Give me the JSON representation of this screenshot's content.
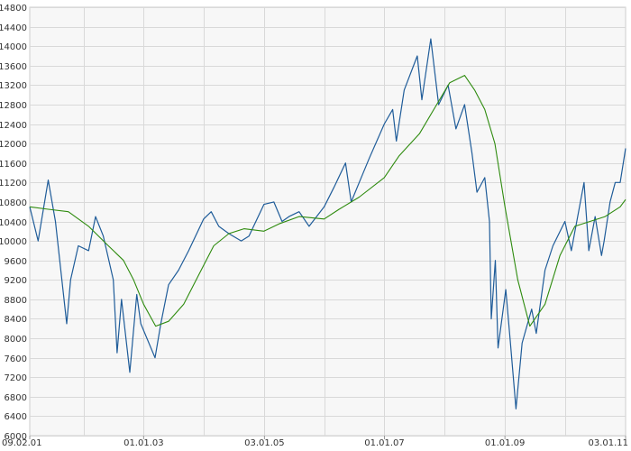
{
  "chart_data": {
    "type": "line",
    "title": "",
    "xlabel": "",
    "ylabel": "",
    "ylim": [
      6000,
      14800
    ],
    "xlim": [
      "2001-02-09",
      "2011-01-03"
    ],
    "y_ticks": [
      6000,
      6400,
      6800,
      7200,
      7600,
      8000,
      8400,
      8800,
      9200,
      9600,
      10000,
      10400,
      10800,
      11200,
      11600,
      12000,
      12400,
      12800,
      13200,
      13600,
      14000,
      14400,
      14800
    ],
    "y_tick_labels": [
      "6000",
      "6400",
      "6800",
      "7200",
      "7600",
      "8000",
      "8400",
      "8800",
      "9200",
      "9600",
      "10000",
      "10400",
      "10800",
      "11200",
      "11600",
      "12000",
      "12400",
      "12800",
      "13200",
      "13600",
      "14000",
      "14400",
      "14800"
    ],
    "x_ticks": [
      "2001-02-09",
      "2003-01-01",
      "2005-01-03",
      "2007-01-01",
      "2009-01-01",
      "2011-01-03"
    ],
    "x_tick_labels": [
      "09.02.01",
      "01.01.03",
      "03.01.05",
      "01.01.07",
      "01.01.09",
      "03.01.11"
    ],
    "grid": true,
    "legend": "none",
    "colors": {
      "series_1": "#1f5c99",
      "series_2": "#2e8b0e",
      "grid": "#d9d9d9",
      "axis": "#999999"
    },
    "series": [
      {
        "dates": [
          "2001-02-09",
          "2001-04-01",
          "2001-06-01",
          "2001-07-15",
          "2001-09-21",
          "2001-10-15",
          "2001-12-01",
          "2002-02-01",
          "2002-03-15",
          "2002-05-01",
          "2002-07-01",
          "2002-07-24",
          "2002-08-20",
          "2002-10-09",
          "2002-11-20",
          "2002-12-15",
          "2003-03-11",
          "2003-04-15",
          "2003-06-01",
          "2003-08-01",
          "2003-10-01",
          "2003-12-31",
          "2004-02-15",
          "2004-04-01",
          "2004-06-01",
          "2004-08-15",
          "2004-10-01",
          "2004-12-31",
          "2005-03-01",
          "2005-04-20",
          "2005-06-01",
          "2005-08-01",
          "2005-10-01",
          "2005-12-31",
          "2006-03-01",
          "2006-05-10",
          "2006-06-13",
          "2006-08-01",
          "2006-10-01",
          "2006-12-31",
          "2007-02-20",
          "2007-03-14",
          "2007-05-01",
          "2007-07-19",
          "2007-08-16",
          "2007-10-09",
          "2007-11-26",
          "2008-01-22",
          "2008-03-10",
          "2008-05-01",
          "2008-06-15",
          "2008-07-15",
          "2008-09-01",
          "2008-09-29",
          "2008-10-10",
          "2008-11-04",
          "2008-11-20",
          "2009-01-06",
          "2009-02-01",
          "2009-03-09",
          "2009-04-15",
          "2009-06-12",
          "2009-07-10",
          "2009-09-01",
          "2009-10-19",
          "2009-12-31",
          "2010-02-08",
          "2010-04-26",
          "2010-05-25",
          "2010-07-02",
          "2010-08-10",
          "2010-08-26",
          "2010-10-01",
          "2010-11-01",
          "2010-12-01",
          "2011-01-03"
        ],
        "values": [
          10700,
          10000,
          11250,
          10400,
          8300,
          9200,
          9900,
          9800,
          10500,
          10100,
          9200,
          7700,
          8800,
          7300,
          8900,
          8300,
          7600,
          8300,
          9100,
          9400,
          9800,
          10450,
          10600,
          10300,
          10150,
          10000,
          10100,
          10750,
          10800,
          10400,
          10500,
          10600,
          10300,
          10700,
          11100,
          11600,
          10800,
          11200,
          11700,
          12400,
          12700,
          12050,
          13100,
          13800,
          12900,
          14150,
          12800,
          13200,
          12300,
          12800,
          11800,
          11000,
          11300,
          10400,
          8400,
          9600,
          7800,
          9000,
          8000,
          6550,
          7900,
          8600,
          8100,
          9400,
          9900,
          10400,
          9800,
          11200,
          9800,
          10500,
          9700,
          10000,
          10800,
          11200,
          11200,
          11900
        ]
      },
      {
        "dates": [
          "2001-02-09",
          "2001-06-01",
          "2001-10-01",
          "2002-02-01",
          "2002-06-01",
          "2002-09-01",
          "2002-11-01",
          "2003-01-01",
          "2003-03-15",
          "2003-06-01",
          "2003-09-01",
          "2003-12-01",
          "2004-03-01",
          "2004-06-01",
          "2004-09-01",
          "2004-12-31",
          "2005-04-01",
          "2005-08-01",
          "2005-12-31",
          "2006-04-01",
          "2006-08-01",
          "2006-12-31",
          "2007-04-01",
          "2007-08-01",
          "2007-12-01",
          "2008-02-01",
          "2008-05-01",
          "2008-07-01",
          "2008-09-01",
          "2008-11-01",
          "2009-01-01",
          "2009-03-20",
          "2009-06-01",
          "2009-09-01",
          "2009-12-01",
          "2010-03-01",
          "2010-06-01",
          "2010-09-01",
          "2010-12-01",
          "2011-01-03"
        ],
        "values": [
          10700,
          10650,
          10600,
          10300,
          9900,
          9600,
          9200,
          8700,
          8250,
          8350,
          8700,
          9300,
          9900,
          10150,
          10250,
          10200,
          10350,
          10500,
          10450,
          10650,
          10900,
          11300,
          11750,
          12200,
          12900,
          13250,
          13400,
          13100,
          12700,
          12000,
          10700,
          9200,
          8250,
          8700,
          9700,
          10300,
          10400,
          10500,
          10700,
          10850
        ]
      }
    ]
  }
}
